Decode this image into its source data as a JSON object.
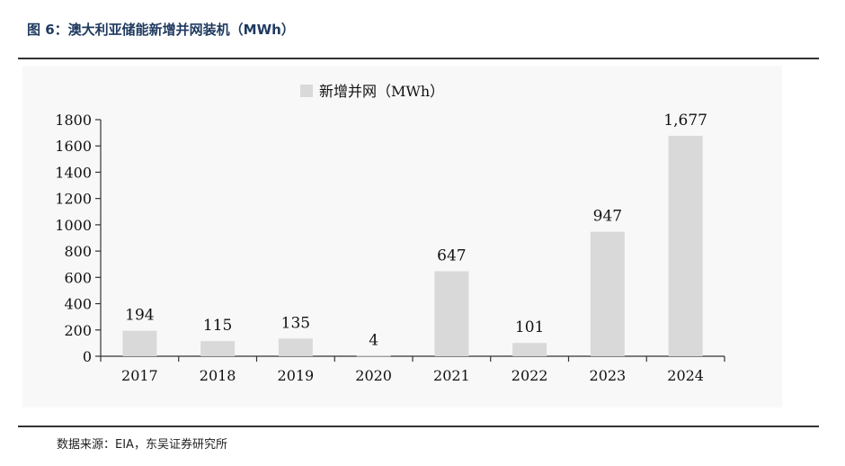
{
  "header": {
    "title": "图 6：澳大利亚储能新增并网装机（MWh）"
  },
  "footer": {
    "source": "数据来源：EIA，东吴证券研究所"
  },
  "chart_data": {
    "type": "bar",
    "title": "",
    "xlabel": "",
    "ylabel": "",
    "categories": [
      "2017",
      "2018",
      "2019",
      "2020",
      "2021",
      "2022",
      "2023",
      "2024"
    ],
    "series": [
      {
        "name": "新增并网（MWh）",
        "values": [
          194,
          115,
          135,
          4,
          647,
          101,
          947,
          1677
        ],
        "labels": [
          "194",
          "115",
          "135",
          "4",
          "647",
          "101",
          "947",
          "1,677"
        ],
        "color": "#d9d9d9"
      }
    ],
    "ylim": [
      0,
      1800
    ],
    "yticks": [
      0,
      200,
      400,
      600,
      800,
      1000,
      1200,
      1400,
      1600,
      1800
    ],
    "legend": "top-center",
    "grid": false
  }
}
